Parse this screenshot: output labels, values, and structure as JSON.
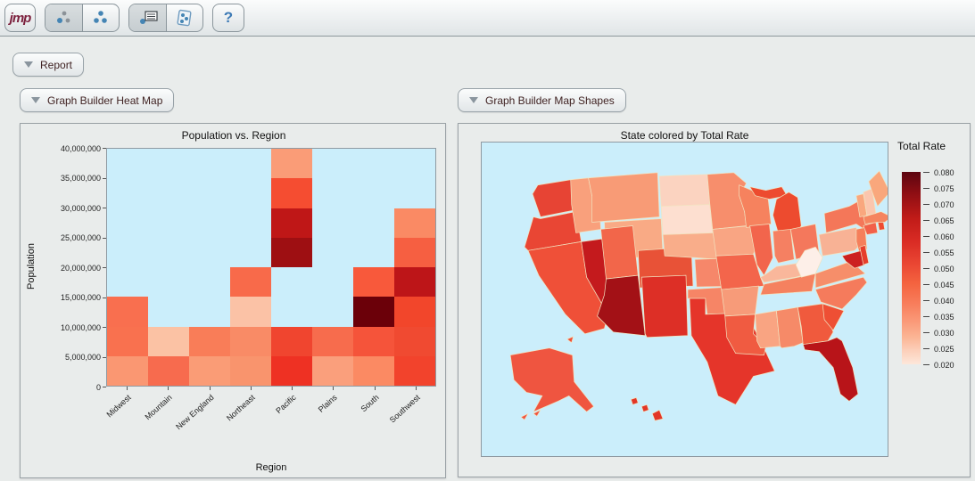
{
  "toolbar": {
    "logo_text": "jmp",
    "help_glyph": "?",
    "buttons": [
      {
        "label": "select-points-tool",
        "active": true
      },
      {
        "label": "grouped-points-tool",
        "active": false
      },
      {
        "label": "point-label-tool",
        "active": true
      },
      {
        "label": "point-panel-tool",
        "active": false
      },
      {
        "label": "help",
        "active": false
      }
    ]
  },
  "report": {
    "label": "Report"
  },
  "panels": {
    "heatmap_header": "Graph Builder Heat Map",
    "map_header": "Graph Builder Map Shapes"
  },
  "chart_data": [
    {
      "type": "heatmap",
      "title": "Population vs. Region",
      "xlabel": "Region",
      "ylabel": "Population",
      "plot_bg": "#CBEEFB",
      "x_categories": [
        "Midwest",
        "Mountain",
        "New England",
        "Northeast",
        "Pacific",
        "Plains",
        "South",
        "Southwest"
      ],
      "y_axis": {
        "min": 0,
        "max": 40000000,
        "tick_step": 5000000,
        "tick_labels": [
          "40,000,000",
          "35,000,000",
          "30,000,000",
          "25,000,000",
          "20,000,000",
          "15,000,000",
          "10,000,000",
          "5,000,000",
          "0"
        ]
      },
      "row_bands_top_to_bottom": [
        "35M-40M",
        "30M-35M",
        "25M-30M",
        "20M-25M",
        "15M-20M",
        "10M-15M",
        "5M-10M",
        "0M-5M"
      ],
      "cells": [
        [
          null,
          null,
          null,
          null,
          "#FA9C77",
          null,
          null,
          null
        ],
        [
          null,
          null,
          null,
          null,
          "#F54D31",
          null,
          null,
          null
        ],
        [
          null,
          null,
          null,
          null,
          "#BF1717",
          null,
          null,
          "#FA8A64"
        ],
        [
          null,
          null,
          null,
          null,
          "#9E0F12",
          null,
          null,
          "#F65F41"
        ],
        [
          null,
          null,
          null,
          "#F86A4A",
          null,
          null,
          "#F8593B",
          "#BD1518"
        ],
        [
          "#F96F4F",
          null,
          null,
          "#FBC2A6",
          null,
          null,
          "#6B0009",
          "#F2462B"
        ],
        [
          "#F9714F",
          "#FBC2A4",
          "#F97D58",
          "#F98B66",
          "#F0452F",
          "#F76C4D",
          "#F5543A",
          "#F04A31"
        ],
        [
          "#FA9772",
          "#F76B4E",
          "#FA9C76",
          "#F9946D",
          "#EE3123",
          "#FA9F7C",
          "#FB8A63",
          "#F2432C"
        ]
      ]
    },
    {
      "type": "choropleth",
      "title": "State colored by Total Rate",
      "legend_title": "Total Rate",
      "legend_ticks": [
        "0.080",
        "0.075",
        "0.070",
        "0.065",
        "0.060",
        "0.055",
        "0.050",
        "0.045",
        "0.040",
        "0.035",
        "0.030",
        "0.025",
        "0.020"
      ],
      "map_bg": "#CBEEFB",
      "state_colors": {
        "WA": "#E74434",
        "OR": "#E94634",
        "CA": "#EF5038",
        "NV": "#C41A1D",
        "ID": "#F9A07C",
        "MT": "#F89B76",
        "WY": "#F9AA85",
        "UT": "#F2664A",
        "CO": "#E85237",
        "AZ": "#A31116",
        "NM": "#DD2F26",
        "ND": "#FBD3C0",
        "SD": "#FDDFD0",
        "NE": "#F9AD8A",
        "KS": "#F6876A",
        "OK": "#F68566",
        "TX": "#E5352A",
        "MN": "#F78E6C",
        "IA": "#F9A583",
        "MO": "#F3654B",
        "AR": "#F79B79",
        "LA": "#F05B41",
        "MS": "#F9A482",
        "WI": "#F6825E",
        "IL": "#F2654C",
        "MI": "#ED4B2F",
        "IN": "#F58062",
        "OH": "#F4785C",
        "KY": "#F9B79B",
        "TN": "#F5815F",
        "AL": "#F68A68",
        "GA": "#F05A3D",
        "FL": "#B81419",
        "SC": "#EE4F34",
        "NC": "#F57B5C",
        "VA": "#F68E6A",
        "WV": "#FDEFE8",
        "MD": "#CC2020",
        "DE": "#E63E2C",
        "NJ": "#F57F5B",
        "PA": "#F8B295",
        "NY": "#F47759",
        "CT": "#F26049",
        "RI": "#EE4B31",
        "MA": "#F5845F",
        "VT": "#F9A77E",
        "NH": "#FBC6AE",
        "ME": "#F9A77C",
        "AK": "#EF5540",
        "HI": "#E23627"
      }
    }
  ]
}
